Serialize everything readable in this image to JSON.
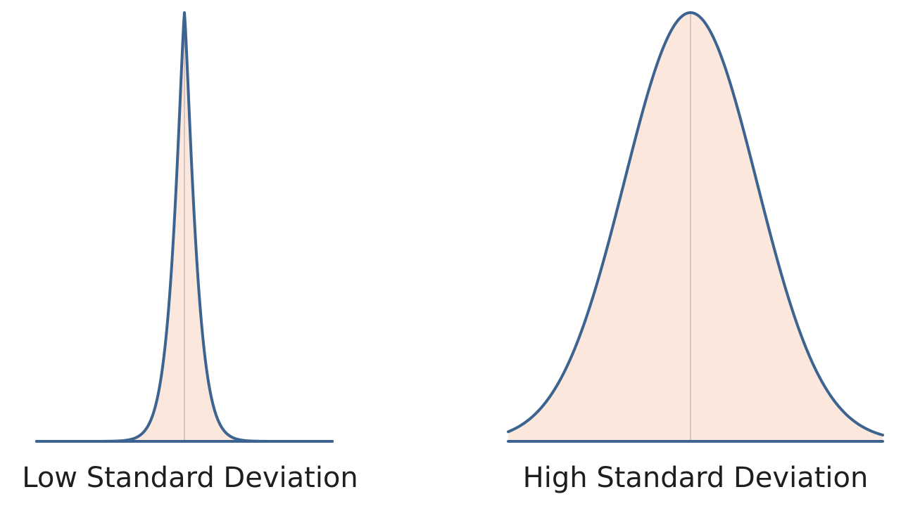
{
  "colors": {
    "curve_stroke": "#3d6490",
    "curve_fill": "#fbe7dc",
    "center_line": "#a8a0a0",
    "caption_text": "#1e1e1e"
  },
  "panels": [
    {
      "id": "low",
      "caption": "Low Standard Deviation",
      "relative_spread": 0.2
    },
    {
      "id": "high",
      "caption": "High Standard Deviation",
      "relative_spread": 1.0
    }
  ]
}
